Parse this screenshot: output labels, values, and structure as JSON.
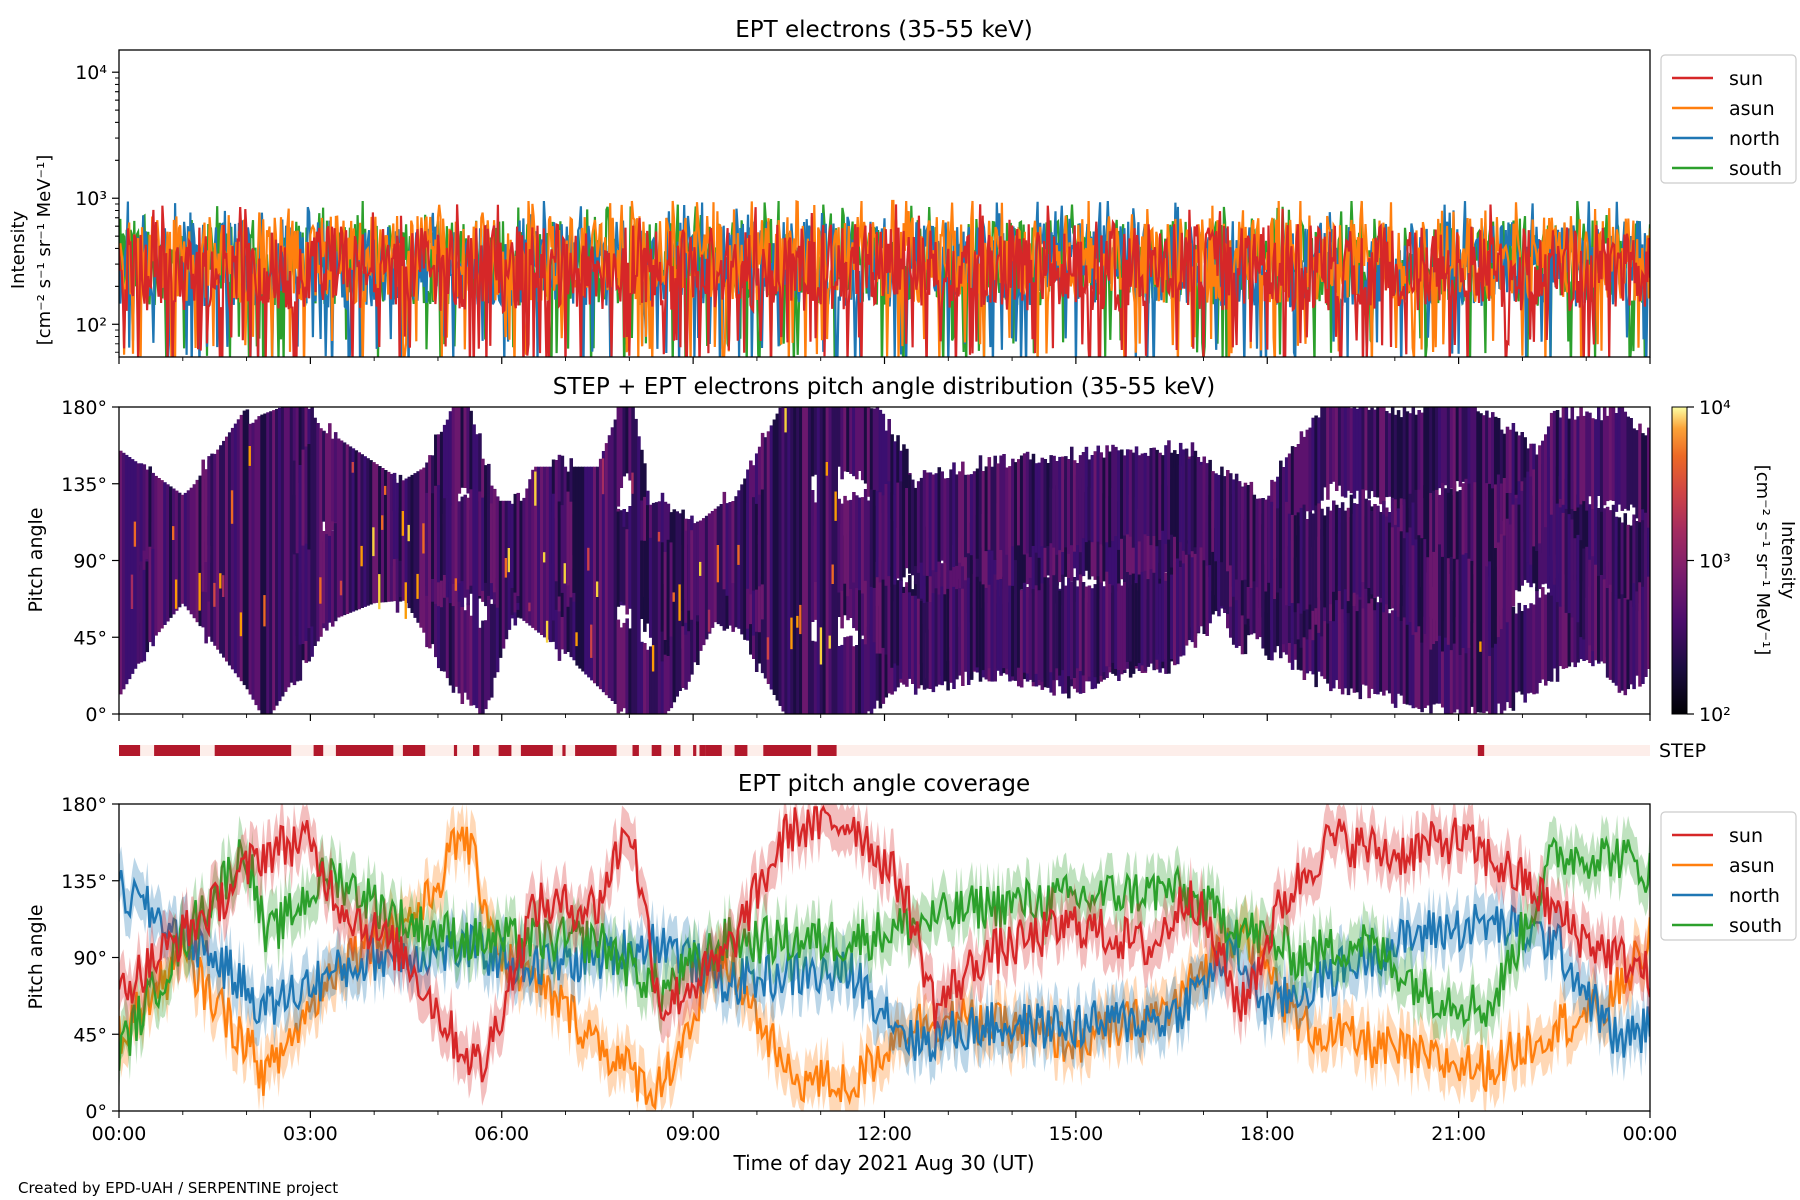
{
  "footer": "Created by EPD-UAH / SERPENTINE project",
  "colors": {
    "sun": "#d62728",
    "asun": "#ff7f0e",
    "north": "#1f77b4",
    "south": "#2ca02c",
    "step_on": "#b2182b",
    "step_off": "#fdeeea"
  },
  "chart_data": [
    {
      "type": "line",
      "title": "EPT electrons (35-55 keV)",
      "ylabel_lines": [
        "Intensity",
        "[cm⁻² s⁻¹ sr⁻¹ MeV⁻¹]"
      ],
      "yscale": "log",
      "ylim": [
        55,
        15000
      ],
      "yticks": [
        {
          "value": 100,
          "label": "10²"
        },
        {
          "value": 1000,
          "label": "10³"
        },
        {
          "value": 10000,
          "label": "10⁴"
        }
      ],
      "xlim_hours": [
        0,
        24
      ],
      "legend_position": "upper-right-outside",
      "series": [
        {
          "name": "sun",
          "color": "#d62728",
          "typical_value": 280
        },
        {
          "name": "asun",
          "color": "#ff7f0e",
          "typical_value": 330
        },
        {
          "name": "north",
          "color": "#1f77b4",
          "typical_value": 300
        },
        {
          "name": "south",
          "color": "#2ca02c",
          "typical_value": 310
        }
      ]
    },
    {
      "type": "heatmap",
      "title": "STEP + EPT electrons pitch angle distribution (35-55 keV)",
      "ylabel": "Pitch angle",
      "ylim": [
        0,
        180
      ],
      "yticks": [
        "0°",
        "45°",
        "90°",
        "135°",
        "180°"
      ],
      "colorbar": {
        "label_lines": [
          "Intensity",
          "[cm⁻² s⁻¹ sr⁻¹ MeV⁻¹]"
        ],
        "scale": "log",
        "range": [
          100,
          10000
        ],
        "ticks": [
          "10²",
          "10³",
          "10⁴"
        ],
        "colormap": "inferno"
      },
      "step_label": "STEP",
      "step_coverage_hours": [
        [
          0,
          0.33
        ],
        [
          0.55,
          1.27
        ],
        [
          1.5,
          2.7
        ],
        [
          3.05,
          3.2
        ],
        [
          3.4,
          4.3
        ],
        [
          4.45,
          4.8
        ],
        [
          5.25,
          5.3
        ],
        [
          5.55,
          5.65
        ],
        [
          5.95,
          6.15
        ],
        [
          6.3,
          6.8
        ],
        [
          6.95,
          7.0
        ],
        [
          7.15,
          7.8
        ],
        [
          8.05,
          8.15
        ],
        [
          8.35,
          8.5
        ],
        [
          8.7,
          8.8
        ],
        [
          9.0,
          9.05
        ],
        [
          9.1,
          9.2
        ],
        [
          9.2,
          9.45
        ],
        [
          9.65,
          9.85
        ],
        [
          10.1,
          10.85
        ],
        [
          10.95,
          11.25
        ],
        [
          21.3,
          21.4
        ]
      ]
    },
    {
      "type": "line",
      "title": "EPT pitch angle coverage",
      "ylabel": "Pitch angle",
      "xlabel": "Time of day 2021 Aug 30 (UT)",
      "ylim": [
        0,
        180
      ],
      "yticks": [
        "0°",
        "45°",
        "90°",
        "135°",
        "180°"
      ],
      "xticks": [
        "00:00",
        "03:00",
        "06:00",
        "09:00",
        "12:00",
        "15:00",
        "18:00",
        "21:00",
        "00:00"
      ],
      "xlim_hours": [
        0,
        24
      ],
      "legend_position": "upper-right-outside",
      "series": [
        {
          "name": "sun",
          "color": "#d62728",
          "hours": [
            0,
            1.5,
            2.2,
            2.9,
            3.5,
            4.5,
            5.3,
            5.7,
            6.5,
            7.5,
            8.0,
            8.5,
            9.5,
            10.5,
            11.5,
            12.3,
            12.8,
            13.5,
            15.0,
            16.2,
            16.8,
            17.6,
            18.2,
            19.0,
            20.0,
            21.0,
            22.0,
            23.0,
            24.0
          ],
          "values": [
            70,
            120,
            150,
            160,
            120,
            90,
            40,
            25,
            120,
            120,
            170,
            60,
            90,
            165,
            170,
            130,
            60,
            90,
            110,
            95,
            130,
            60,
            120,
            160,
            150,
            160,
            135,
            100,
            80
          ]
        },
        {
          "name": "asun",
          "color": "#ff7f0e",
          "hours": [
            0,
            1.0,
            2.0,
            2.3,
            3.5,
            4.8,
            5.4,
            6.0,
            7.0,
            7.8,
            8.4,
            9.5,
            10.5,
            11.5,
            12.3,
            13.0,
            15.0,
            16.5,
            17.6,
            18.5,
            19.5,
            20.5,
            21.5,
            22.5,
            23.3,
            24.0
          ],
          "values": [
            45,
            90,
            40,
            20,
            90,
            120,
            165,
            90,
            60,
            30,
            10,
            90,
            20,
            15,
            50,
            55,
            40,
            60,
            110,
            50,
            40,
            30,
            25,
            50,
            60,
            100
          ]
        },
        {
          "name": "north",
          "color": "#1f77b4",
          "hours": [
            0,
            1.5,
            2.3,
            3.0,
            4.0,
            5.5,
            6.5,
            7.5,
            8.5,
            9.5,
            10.5,
            11.5,
            12.5,
            13.5,
            15.0,
            16.5,
            17.5,
            18.0,
            18.5,
            19.5,
            20.5,
            21.5,
            22.5,
            23.5,
            24.0
          ],
          "values": [
            130,
            90,
            60,
            75,
            90,
            95,
            85,
            90,
            100,
            75,
            80,
            80,
            40,
            50,
            50,
            55,
            95,
            60,
            70,
            90,
            105,
            110,
            100,
            40,
            50
          ]
        },
        {
          "name": "south",
          "color": "#2ca02c",
          "hours": [
            0,
            1.0,
            2.0,
            2.3,
            3.3,
            4.5,
            5.5,
            6.5,
            7.5,
            8.5,
            9.5,
            10.5,
            11.5,
            12.5,
            13.5,
            15.0,
            16.5,
            17.5,
            18.5,
            19.5,
            20.5,
            21.5,
            22.5,
            23.5,
            24.0
          ],
          "values": [
            35,
            100,
            155,
            100,
            140,
            110,
            100,
            100,
            100,
            70,
            100,
            100,
            100,
            110,
            120,
            125,
            130,
            110,
            90,
            100,
            70,
            60,
            150,
            150,
            140
          ]
        }
      ]
    }
  ]
}
